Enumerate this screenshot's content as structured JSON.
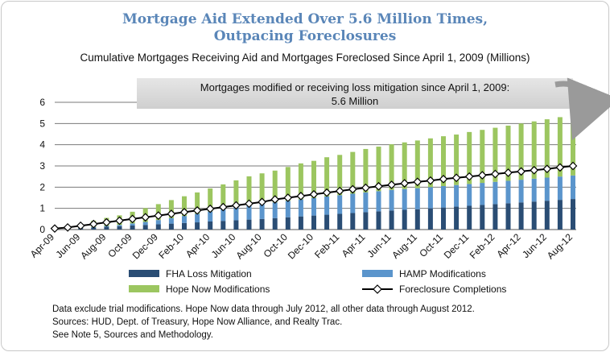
{
  "chart_data": {
    "type": "bar",
    "stacked": true,
    "title_lines": [
      "Mortgage Aid Extended Over 5.6 Million Times,",
      "Outpacing Foreclosures"
    ],
    "subtitle": "Cumulative Mortgages Receiving Aid and Mortgages Foreclosed Since April 1, 2009 (Millions)",
    "ylim": [
      0,
      6
    ],
    "yticks": [
      "0",
      "1",
      "2",
      "3",
      "4",
      "5",
      "6"
    ],
    "grid": true,
    "categories": [
      "Apr-09",
      "May-09",
      "Jun-09",
      "Jul-09",
      "Aug-09",
      "Sep-09",
      "Oct-09",
      "Nov-09",
      "Dec-09",
      "Jan-10",
      "Feb-10",
      "Mar-10",
      "Apr-10",
      "May-10",
      "Jun-10",
      "Jul-10",
      "Aug-10",
      "Sep-10",
      "Oct-10",
      "Nov-10",
      "Dec-10",
      "Jan-11",
      "Feb-11",
      "Mar-11",
      "Apr-11",
      "May-11",
      "Jun-11",
      "Jul-11",
      "Aug-11",
      "Sep-11",
      "Oct-11",
      "Nov-11",
      "Dec-11",
      "Jan-12",
      "Feb-12",
      "Mar-12",
      "Apr-12",
      "May-12",
      "Jun-12",
      "Jul-12",
      "Aug-12"
    ],
    "labeled_ticks": [
      "Apr-09",
      "Jun-09",
      "Aug-09",
      "Oct-09",
      "Dec-09",
      "Feb-10",
      "Apr-10",
      "Jun-10",
      "Aug-10",
      "Oct-10",
      "Dec-10",
      "Feb-11",
      "Apr-11",
      "Jun-11",
      "Aug-11",
      "Oct-11",
      "Dec-11",
      "Feb-12",
      "Apr-12",
      "Jun-12",
      "Aug-12"
    ],
    "series": [
      {
        "name": "FHA Loss Mitigation",
        "kind": "bar",
        "color": "#2a4d74",
        "values": [
          0.02,
          0.04,
          0.07,
          0.1,
          0.13,
          0.16,
          0.19,
          0.22,
          0.25,
          0.28,
          0.31,
          0.34,
          0.38,
          0.41,
          0.44,
          0.47,
          0.5,
          0.54,
          0.58,
          0.62,
          0.66,
          0.7,
          0.74,
          0.78,
          0.82,
          0.86,
          0.9,
          0.93,
          0.96,
          1.0,
          1.04,
          1.08,
          1.12,
          1.16,
          1.2,
          1.24,
          1.28,
          1.32,
          1.36,
          1.4,
          1.44
        ]
      },
      {
        "name": "HAMP Modifications",
        "kind": "bar",
        "color": "#5b95cc",
        "values": [
          0.0,
          0.0,
          0.0,
          0.02,
          0.04,
          0.06,
          0.1,
          0.14,
          0.2,
          0.26,
          0.33,
          0.4,
          0.47,
          0.54,
          0.61,
          0.66,
          0.7,
          0.74,
          0.77,
          0.8,
          0.83,
          0.86,
          0.88,
          0.91,
          0.93,
          0.95,
          0.97,
          0.98,
          0.99,
          1.0,
          1.01,
          1.02,
          1.03,
          1.04,
          1.05,
          1.06,
          1.07,
          1.08,
          1.09,
          1.1,
          1.11
        ]
      },
      {
        "name": "Hope Now Modifications",
        "kind": "bar",
        "color": "#9cc660",
        "values": [
          0.05,
          0.12,
          0.2,
          0.3,
          0.38,
          0.45,
          0.55,
          0.65,
          0.75,
          0.85,
          0.93,
          1.01,
          1.09,
          1.18,
          1.27,
          1.38,
          1.45,
          1.5,
          1.6,
          1.7,
          1.75,
          1.85,
          1.9,
          1.97,
          2.05,
          2.1,
          2.15,
          2.2,
          2.25,
          2.3,
          2.35,
          2.38,
          2.45,
          2.5,
          2.55,
          2.6,
          2.65,
          2.7,
          2.75,
          2.8,
          3.05
        ]
      },
      {
        "name": "Foreclosure Completions",
        "kind": "line",
        "color": "#000000",
        "marker": "diamond",
        "values": [
          0.05,
          0.1,
          0.18,
          0.26,
          0.34,
          0.42,
          0.5,
          0.58,
          0.66,
          0.74,
          0.82,
          0.9,
          0.98,
          1.06,
          1.14,
          1.22,
          1.3,
          1.42,
          1.5,
          1.58,
          1.66,
          1.74,
          1.82,
          1.9,
          1.97,
          2.04,
          2.11,
          2.18,
          2.25,
          2.31,
          2.38,
          2.44,
          2.5,
          2.56,
          2.62,
          2.68,
          2.74,
          2.8,
          2.86,
          2.93,
          3.0
        ]
      }
    ],
    "callout": {
      "line1": "Mortgages modified or receiving loss mitigation since April 1, 2009:",
      "line2": "5.6 Million"
    }
  },
  "legend": [
    {
      "label": "FHA Loss Mitigation",
      "color": "#2a4d74",
      "kind": "bar"
    },
    {
      "label": "HAMP Modifications",
      "color": "#5b95cc",
      "kind": "bar"
    },
    {
      "label": "Hope Now Modifications",
      "color": "#9cc660",
      "kind": "bar"
    },
    {
      "label": "Foreclosure Completions",
      "color": "#000000",
      "kind": "line"
    }
  ],
  "notes": [
    "Data exclude trial modifications. Hope Now data through July 2012, all other data through August 2012.",
    "Sources:  HUD, Dept. of Treasury, Hope Now Alliance, and Realty Trac.",
    "See Note 5, Sources and Methodology."
  ]
}
